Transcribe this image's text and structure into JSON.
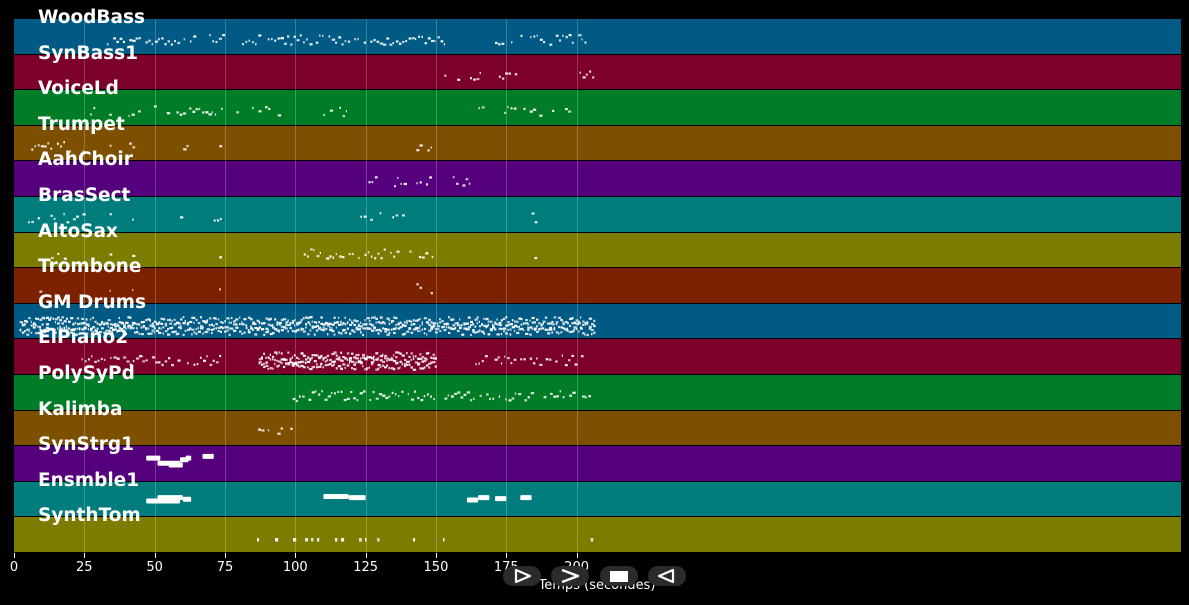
{
  "tracks": [
    {
      "name": "WoodBass",
      "color": "#005a84"
    },
    {
      "name": "SynBass1",
      "color": "#7c0029"
    },
    {
      "name": "VoiceLd",
      "color": "#007c26"
    },
    {
      "name": "Trumpet",
      "color": "#7c5000"
    },
    {
      "name": "AahChoir",
      "color": "#55007c"
    },
    {
      "name": "BrasSect",
      "color": "#007c7c"
    },
    {
      "name": "AltoSax",
      "color": "#7c7c00"
    },
    {
      "name": "Trombone",
      "color": "#7c2200"
    },
    {
      "name": "GM Drums",
      "color": "#005a84"
    },
    {
      "name": "ElPiano2",
      "color": "#7c0029"
    },
    {
      "name": "PolySyPd",
      "color": "#007c26"
    },
    {
      "name": "Kalimba",
      "color": "#7c5000"
    },
    {
      "name": "SynStrg1",
      "color": "#55007c"
    },
    {
      "name": "Ensmble1",
      "color": "#007c7c"
    },
    {
      "name": "SynthTom",
      "color": "#7c7c00"
    }
  ],
  "xaxis": {
    "label": "Temps (secondes)",
    "ticks": [
      "0",
      "25",
      "50",
      "75",
      "100",
      "125",
      "150",
      "175",
      "200"
    ],
    "range": [
      0,
      207
    ]
  },
  "note_color": "#ffffff",
  "controls": [
    {
      "name": "play-icon"
    },
    {
      "name": "forward-icon"
    },
    {
      "name": "stop-icon"
    },
    {
      "name": "rewind-icon"
    }
  ]
}
